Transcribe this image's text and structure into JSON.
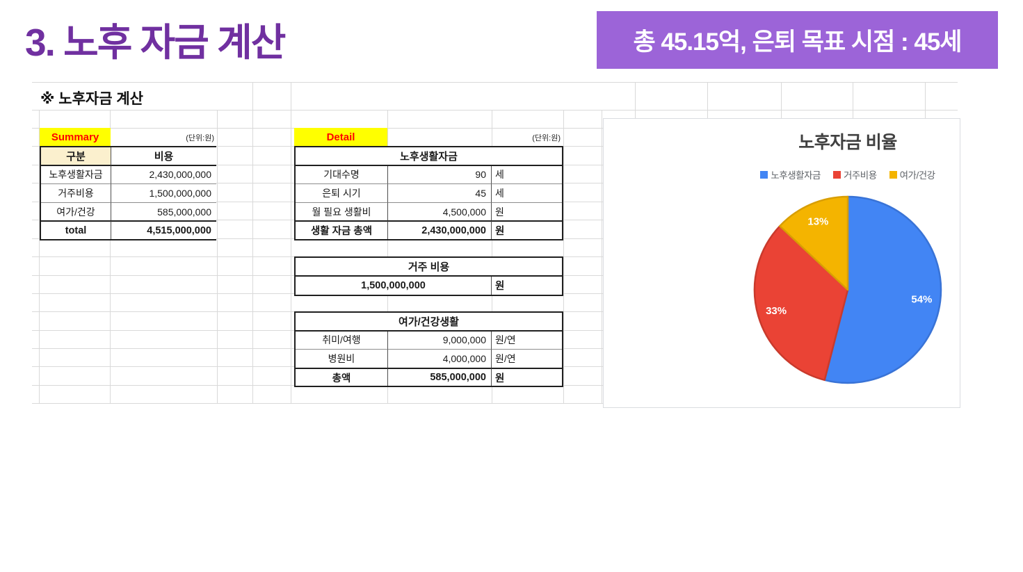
{
  "page": {
    "title": "3. 노후 자금 계산",
    "banner": "총 45.15억, 은퇴 목표 시점 : 45세",
    "sheet_heading": "※ 노후자금 계산",
    "colors": {
      "title_purple": "#7030A0",
      "banner_bg": "#9C64D8",
      "tag_bg": "#FFFF00",
      "tag_text": "#FF0000",
      "header_cell_bg": "#FBF0CE"
    }
  },
  "summary": {
    "tag": "Summary",
    "unit_note": "(단위:원)",
    "headers": [
      "구분",
      "비용"
    ],
    "rows": [
      {
        "label": "노후생활자금",
        "value": "2,430,000,000"
      },
      {
        "label": "거주비용",
        "value": "1,500,000,000"
      },
      {
        "label": "여가/건강",
        "value": "585,000,000"
      },
      {
        "label": "total",
        "value": "4,515,000,000"
      }
    ]
  },
  "detail": {
    "tag": "Detail",
    "unit_note": "(단위:원)",
    "section1": {
      "title": "노후생활자금",
      "rows": [
        {
          "label": "기대수명",
          "value": "90",
          "unit": "세"
        },
        {
          "label": "은퇴 시기",
          "value": "45",
          "unit": "세"
        },
        {
          "label": "월 필요 생활비",
          "value": "4,500,000",
          "unit": "원"
        },
        {
          "label": "생활 자금 총액",
          "value": "2,430,000,000",
          "unit": "원"
        }
      ]
    },
    "section2": {
      "title": "거주 비용",
      "value": "1,500,000,000",
      "unit": "원"
    },
    "section3": {
      "title": "여가/건강생활",
      "rows": [
        {
          "label": "취미/여행",
          "value": "9,000,000",
          "unit": "원/연"
        },
        {
          "label": "병원비",
          "value": "4,000,000",
          "unit": "원/연"
        },
        {
          "label": "총액",
          "value": "585,000,000",
          "unit": "원"
        }
      ]
    }
  },
  "chart_data": {
    "type": "pie",
    "title": "노후자금 비율",
    "categories": [
      "노후생활자금",
      "거주비용",
      "여가/건강"
    ],
    "values": [
      54,
      33,
      13
    ],
    "labels": [
      "54%",
      "33%",
      "13%"
    ],
    "colors": [
      "#4285F4",
      "#EA4335",
      "#F4B400"
    ],
    "border_colors": [
      "#3973d6",
      "#c93a2c",
      "#d89e04"
    ],
    "legend_position": "top",
    "label_color": "#ffffff",
    "start_angle_deg": 0,
    "direction": "clockwise"
  }
}
